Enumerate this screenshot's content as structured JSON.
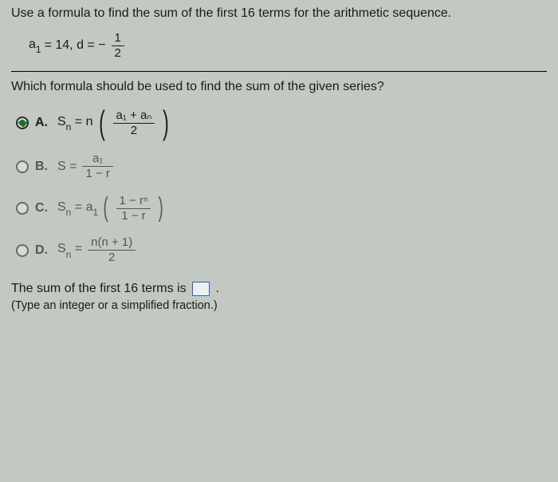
{
  "question": {
    "prompt": "Use a formula to find the sum of the first 16 terms for the arithmetic sequence.",
    "given_prefix": "a",
    "given_sub": "1",
    "given_eq_a1": " = 14, d = −",
    "given_frac_num": "1",
    "given_frac_den": "2",
    "subquestion": "Which formula should be used to find the sum of the given series?"
  },
  "options": {
    "a": {
      "letter": "A.",
      "lhs": "S",
      "lhs_sub": "n",
      "eq": " = n",
      "num": "a₁ + aₙ",
      "den": "2",
      "selected": true
    },
    "b": {
      "letter": "B.",
      "lhs": "S = ",
      "num": "a₁",
      "den": "1 − r",
      "selected": false
    },
    "c": {
      "letter": "C.",
      "lhs": "S",
      "lhs_sub": "n",
      "eq": " = a",
      "eq_sub": "1",
      "num": "1 − rⁿ",
      "den": "1 − r",
      "selected": false
    },
    "d": {
      "letter": "D.",
      "lhs": "S",
      "lhs_sub": "n",
      "eq": " = ",
      "num": "n(n + 1)",
      "den": "2",
      "selected": false
    }
  },
  "answer": {
    "line1_pre": "The sum of the first 16 terms is ",
    "line1_post": ".",
    "hint": "(Type an integer or a simplified fraction.)"
  },
  "style": {
    "bg": "#c4c8c2",
    "text": "#1a1a1a",
    "dim": "#555555",
    "radio_fill": "#1f6f2f",
    "box_border": "#2a64b5",
    "font_size_body": 16,
    "font_size_hint": 14.5
  }
}
